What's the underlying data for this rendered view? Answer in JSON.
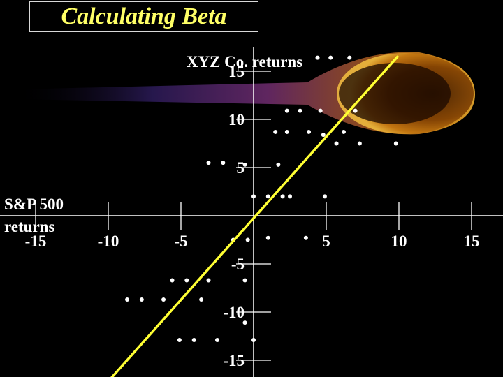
{
  "title": "Calculating Beta",
  "chart_data": {
    "type": "scatter",
    "ylabel": "XYZ Co. returns",
    "xlabel": "S&P 500 returns",
    "xlabel_lines": [
      "S&P 500",
      "returns"
    ],
    "x_ticks": [
      -15,
      -10,
      -5,
      5,
      10,
      15
    ],
    "y_ticks": [
      15,
      10,
      5,
      -5,
      -10,
      -15
    ],
    "xlim": [
      -17.5,
      17.5
    ],
    "ylim": [
      -17.5,
      17.5
    ],
    "grid": false,
    "colors": {
      "points": "#ffffff",
      "axes": "#ffffff",
      "regression_line": "#ffff33",
      "title": "#ffff66"
    },
    "regression_line": {
      "x": [
        -10.6,
        9.9
      ],
      "y": [
        -18.2,
        16.5
      ]
    },
    "points": [
      {
        "x": 4.4,
        "y": 16.4
      },
      {
        "x": 5.3,
        "y": 16.4
      },
      {
        "x": 6.6,
        "y": 16.4
      },
      {
        "x": 2.3,
        "y": 10.9
      },
      {
        "x": 3.2,
        "y": 10.9
      },
      {
        "x": 4.6,
        "y": 10.9
      },
      {
        "x": 7.0,
        "y": 10.9
      },
      {
        "x": 1.5,
        "y": 8.7
      },
      {
        "x": 2.3,
        "y": 8.7
      },
      {
        "x": 3.8,
        "y": 8.7
      },
      {
        "x": 4.8,
        "y": 8.4
      },
      {
        "x": 6.2,
        "y": 8.7
      },
      {
        "x": 5.7,
        "y": 7.5
      },
      {
        "x": 7.3,
        "y": 7.5
      },
      {
        "x": 9.8,
        "y": 7.5
      },
      {
        "x": -3.1,
        "y": 5.5
      },
      {
        "x": -2.1,
        "y": 5.5
      },
      {
        "x": -0.6,
        "y": 5.3
      },
      {
        "x": 1.7,
        "y": 5.3
      },
      {
        "x": 0.0,
        "y": 2.0
      },
      {
        "x": 1.0,
        "y": 2.0
      },
      {
        "x": 2.0,
        "y": 2.0
      },
      {
        "x": 2.5,
        "y": 2.0
      },
      {
        "x": 4.9,
        "y": 2.0
      },
      {
        "x": -1.4,
        "y": -2.5
      },
      {
        "x": -0.4,
        "y": -2.5
      },
      {
        "x": 1.0,
        "y": -2.3
      },
      {
        "x": 3.6,
        "y": -2.3
      },
      {
        "x": -5.6,
        "y": -6.7
      },
      {
        "x": -4.6,
        "y": -6.7
      },
      {
        "x": -3.1,
        "y": -6.7
      },
      {
        "x": -0.6,
        "y": -6.7
      },
      {
        "x": -8.7,
        "y": -8.7
      },
      {
        "x": -7.7,
        "y": -8.7
      },
      {
        "x": -6.2,
        "y": -8.7
      },
      {
        "x": -3.6,
        "y": -8.7
      },
      {
        "x": -5.1,
        "y": -12.9
      },
      {
        "x": -4.1,
        "y": -12.9
      },
      {
        "x": -2.5,
        "y": -12.9
      },
      {
        "x": -0.6,
        "y": -11.1
      },
      {
        "x": 0.0,
        "y": -12.9
      },
      {
        "x": -6.1,
        "y": -17.2
      },
      {
        "x": -5.1,
        "y": -17.2
      },
      {
        "x": -3.6,
        "y": -17.2
      },
      {
        "x": -1.5,
        "y": -17.2
      }
    ]
  }
}
